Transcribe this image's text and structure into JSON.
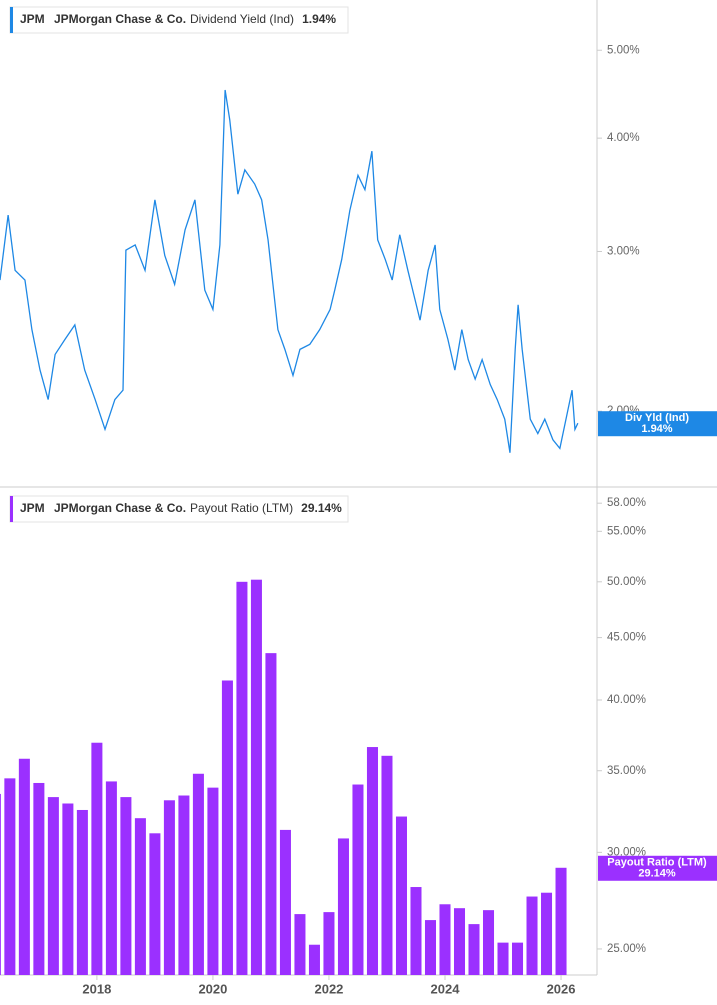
{
  "chart_data": [
    {
      "type": "line",
      "log_scale": true,
      "ticker": "JPM",
      "company": "JPMorgan Chase & Co.",
      "series": [
        {
          "name": "Dividend Yield (Ind)",
          "color": "#1e88e5",
          "legend_value": "1.94%",
          "tag_label": "Div Yld (Ind)",
          "tag_value": "1.94%",
          "x": [
            2016.33,
            2016.47,
            2016.59,
            2016.76,
            2016.88,
            2017.02,
            2017.16,
            2017.28,
            2017.45,
            2017.62,
            2017.79,
            2017.97,
            2018.14,
            2018.31,
            2018.45,
            2018.5,
            2018.66,
            2018.83,
            2019.0,
            2019.17,
            2019.34,
            2019.52,
            2019.69,
            2019.86,
            2020.0,
            2020.12,
            2020.21,
            2020.29,
            2020.43,
            2020.55,
            2020.72,
            2020.84,
            2020.95,
            2021.12,
            2021.24,
            2021.38,
            2021.5,
            2021.67,
            2021.84,
            2022.02,
            2022.1,
            2022.22,
            2022.36,
            2022.5,
            2022.62,
            2022.74,
            2022.84,
            2022.97,
            2023.09,
            2023.22,
            2023.36,
            2023.48,
            2023.57,
            2023.71,
            2023.83,
            2023.91,
            2024.05,
            2024.17,
            2024.29,
            2024.4,
            2024.52,
            2024.64,
            2024.78,
            2024.9,
            2025.03,
            2025.12,
            2025.21,
            2025.26,
            2025.33,
            2025.47,
            2025.6,
            2025.72,
            2025.86,
            2025.98,
            2026.1,
            2026.19,
            2026.24,
            2026.29
          ],
          "values": [
            2.79,
            3.29,
            2.86,
            2.79,
            2.46,
            2.22,
            2.06,
            2.31,
            2.4,
            2.49,
            2.22,
            2.06,
            1.91,
            2.06,
            2.11,
            3.01,
            3.05,
            2.86,
            3.42,
            2.97,
            2.76,
            3.17,
            3.42,
            2.72,
            2.59,
            3.05,
            4.52,
            4.19,
            3.47,
            3.69,
            3.56,
            3.42,
            3.09,
            2.46,
            2.34,
            2.19,
            2.34,
            2.37,
            2.46,
            2.59,
            2.72,
            2.94,
            3.33,
            3.64,
            3.51,
            3.87,
            3.09,
            2.94,
            2.79,
            3.13,
            2.86,
            2.66,
            2.52,
            2.86,
            3.05,
            2.59,
            2.4,
            2.22,
            2.46,
            2.28,
            2.17,
            2.28,
            2.14,
            2.06,
            1.96,
            1.8,
            2.34,
            2.62,
            2.34,
            1.96,
            1.89,
            1.96,
            1.86,
            1.82,
            1.98,
            2.11,
            1.91,
            1.94
          ]
        }
      ],
      "xlim": [
        2016.33,
        2026.62
      ],
      "ylim": [
        1.65,
        5.68
      ],
      "yticks": [
        {
          "value": 2,
          "label": "2.00%"
        },
        {
          "value": 3,
          "label": "3.00%"
        },
        {
          "value": 4,
          "label": "4.00%"
        },
        {
          "value": 5,
          "label": "5.00%"
        }
      ]
    },
    {
      "type": "bar",
      "log_scale": true,
      "ticker": "JPM",
      "company": "JPMorgan Chase & Co.",
      "series": [
        {
          "name": "Payout Ratio (LTM)",
          "color": "#9b30ff",
          "legend_value": "29.14%",
          "tag_label": "Payout Ratio (LTM)",
          "tag_value": "29.14%",
          "x": [
            2016.25,
            2016.5,
            2016.75,
            2017.0,
            2017.25,
            2017.5,
            2017.75,
            2018.0,
            2018.25,
            2018.5,
            2018.75,
            2019.0,
            2019.25,
            2019.5,
            2019.75,
            2020.0,
            2020.25,
            2020.5,
            2020.75,
            2021.0,
            2021.25,
            2021.5,
            2021.75,
            2022.0,
            2022.25,
            2022.5,
            2022.75,
            2023.0,
            2023.25,
            2023.5,
            2023.75,
            2024.0,
            2024.25,
            2024.5,
            2024.75,
            2025.0,
            2025.25,
            2025.5,
            2025.75,
            2026.0
          ],
          "values": [
            33.5,
            34.5,
            35.8,
            34.2,
            33.3,
            32.9,
            32.5,
            36.9,
            34.3,
            33.3,
            32.0,
            31.1,
            33.1,
            33.4,
            34.8,
            33.9,
            41.5,
            50.0,
            50.2,
            43.7,
            31.3,
            26.7,
            25.2,
            26.8,
            30.8,
            34.1,
            36.6,
            36.0,
            32.1,
            28.1,
            26.4,
            27.2,
            27.0,
            26.2,
            26.9,
            25.3,
            25.3,
            27.6,
            27.8,
            29.14
          ]
        }
      ],
      "xlim": [
        2016.33,
        2026.62
      ],
      "ylim": [
        23.8,
        59.8
      ],
      "xticks": [
        2018,
        2020,
        2022,
        2024,
        2026
      ],
      "yticks": [
        {
          "value": 25,
          "label": "25.00%"
        },
        {
          "value": 30,
          "label": "30.00%"
        },
        {
          "value": 35,
          "label": "35.00%"
        },
        {
          "value": 40,
          "label": "40.00%"
        },
        {
          "value": 45,
          "label": "45.00%"
        },
        {
          "value": 50,
          "label": "50.00%"
        },
        {
          "value": 55,
          "label": "55.00%"
        },
        {
          "value": 58,
          "label": "58.00%"
        }
      ]
    }
  ]
}
